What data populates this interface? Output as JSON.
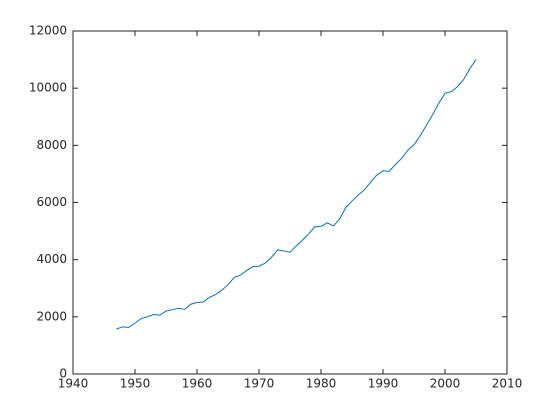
{
  "chart_data": {
    "type": "line",
    "x": [
      1947,
      1948,
      1949,
      1950,
      1951,
      1952,
      1953,
      1954,
      1955,
      1956,
      1957,
      1958,
      1959,
      1960,
      1961,
      1962,
      1963,
      1964,
      1965,
      1966,
      1967,
      1968,
      1969,
      1970,
      1971,
      1972,
      1973,
      1974,
      1975,
      1976,
      1977,
      1978,
      1979,
      1980,
      1981,
      1982,
      1983,
      1984,
      1985,
      1986,
      1987,
      1988,
      1989,
      1990,
      1991,
      1992,
      1993,
      1994,
      1995,
      1996,
      1997,
      1998,
      1999,
      2000,
      2001,
      2002,
      2003,
      2004,
      2005
    ],
    "series": [
      {
        "color": "#0072bd",
        "values": [
          1570,
          1650,
          1630,
          1780,
          1940,
          2000,
          2080,
          2060,
          2200,
          2250,
          2300,
          2260,
          2440,
          2500,
          2520,
          2680,
          2780,
          2930,
          3120,
          3380,
          3460,
          3620,
          3760,
          3770,
          3880,
          4080,
          4340,
          4310,
          4260,
          4480,
          4680,
          4900,
          5150,
          5160,
          5290,
          5180,
          5420,
          5830,
          6050,
          6260,
          6440,
          6710,
          6960,
          7110,
          7090,
          7330,
          7540,
          7830,
          8020,
          8330,
          8700,
          9070,
          9470,
          9820,
          9880,
          10050,
          10300,
          10680,
          11000
        ]
      }
    ],
    "xlim": [
      1940,
      2010
    ],
    "xticks": [
      1940,
      1950,
      1960,
      1970,
      1980,
      1990,
      2000,
      2010
    ],
    "ylim": [
      0,
      12000
    ],
    "yticks": [
      0,
      2000,
      4000,
      6000,
      8000,
      10000,
      12000
    ],
    "grid": false
  }
}
